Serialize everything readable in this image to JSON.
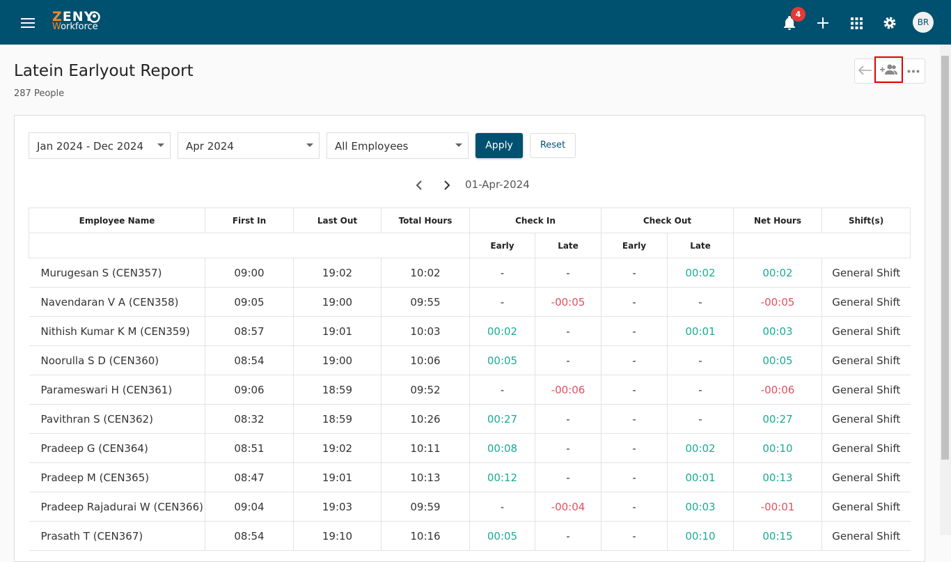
{
  "header": {
    "logo": "ZENY",
    "logo_sub": "Workforce",
    "notification_count": "4",
    "avatar": "BR"
  },
  "page": {
    "title": "Latein Earlyout Report",
    "subtitle": "287 People"
  },
  "filters": {
    "period": "Jan 2024 - Dec 2024",
    "month": "Apr 2024",
    "employees": "All Employees",
    "apply": "Apply",
    "reset": "Reset"
  },
  "date_nav": {
    "date": "01-Apr-2024"
  },
  "table": {
    "columns": [
      "Employee Name",
      "First In",
      "Last Out",
      "Total Hours",
      "Check In",
      "Check Out",
      "Net Hours",
      "Shift(s)"
    ],
    "subcolumns": [
      "Early",
      "Late",
      "Early",
      "Late"
    ],
    "rows": [
      [
        "Murugesan S (CEN357)",
        "09:00",
        "19:02",
        "10:02",
        "-",
        "-",
        "-",
        "00:02",
        "00:02",
        "General Shift"
      ],
      [
        "Navendaran V A (CEN358)",
        "09:05",
        "19:00",
        "09:55",
        "-",
        "-00:05",
        "-",
        "-",
        "-00:05",
        "General Shift"
      ],
      [
        "Nithish Kumar K M (CEN359)",
        "08:57",
        "19:01",
        "10:03",
        "00:02",
        "-",
        "-",
        "00:01",
        "00:03",
        "General Shift"
      ],
      [
        "Noorulla S D (CEN360)",
        "08:54",
        "19:00",
        "10:06",
        "00:05",
        "-",
        "-",
        "-",
        "00:05",
        "General Shift"
      ],
      [
        "Parameswari H (CEN361)",
        "09:06",
        "18:59",
        "09:52",
        "-",
        "-00:06",
        "-",
        "-",
        "-00:06",
        "General Shift"
      ],
      [
        "Pavithran S (CEN362)",
        "08:32",
        "18:59",
        "10:26",
        "00:27",
        "-",
        "-",
        "-",
        "00:27",
        "General Shift"
      ],
      [
        "Pradeep G (CEN364)",
        "08:51",
        "19:02",
        "10:11",
        "00:08",
        "-",
        "-",
        "00:02",
        "00:10",
        "General Shift"
      ],
      [
        "Pradeep M (CEN365)",
        "08:47",
        "19:01",
        "10:13",
        "00:12",
        "-",
        "-",
        "00:01",
        "00:13",
        "General Shift"
      ],
      [
        "Pradeep Rajadurai W (CEN366)",
        "09:04",
        "19:03",
        "09:59",
        "-",
        "-00:04",
        "-",
        "00:03",
        "-00:01",
        "General Shift"
      ],
      [
        "Prasath T (CEN367)",
        "08:54",
        "19:10",
        "10:16",
        "00:05",
        "-",
        "-",
        "00:10",
        "00:15",
        "General Shift"
      ]
    ]
  }
}
